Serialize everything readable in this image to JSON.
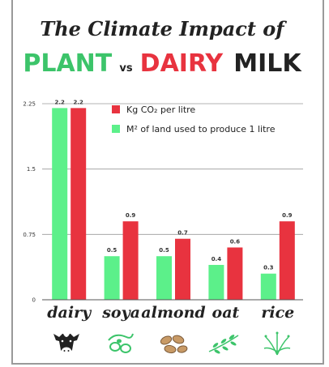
{
  "title_line1": "The Climate Impact of",
  "title_line2": {
    "plant": "PLANT",
    "vs": "vs",
    "dairy": "DAIRY",
    "milk": "MILK"
  },
  "colors": {
    "green": "#5cf08a",
    "red": "#e8333f",
    "title_green": "#3cc46a",
    "grid": "#9a9a9a"
  },
  "chart_data": {
    "type": "bar",
    "categories": [
      "dairy",
      "soya",
      "almond",
      "oat",
      "rice"
    ],
    "series": [
      {
        "name": "M² of land used to produce 1 litre",
        "color": "#5cf08a",
        "values": [
          2.2,
          0.5,
          0.5,
          0.4,
          0.3
        ]
      },
      {
        "name": "Kg CO₂ per litre",
        "color": "#e8333f",
        "values": [
          2.2,
          0.9,
          0.7,
          0.6,
          0.9
        ]
      }
    ],
    "value_labels": {
      "green": [
        "2.2",
        "0.5",
        "0.5",
        "0.4",
        "0.3"
      ],
      "red": [
        "2.2",
        "0.9",
        "0.7",
        "0.6",
        "0.9"
      ]
    },
    "yticks": [
      0,
      0.75,
      1.5,
      2.25
    ],
    "ytick_labels": [
      "0",
      "0.75",
      "1.5",
      "2.25"
    ],
    "ylim": [
      0,
      2.25
    ],
    "grid": true,
    "legend_position": "top-right",
    "title": "The Climate Impact of PLANT vs DAIRY MILK",
    "icons": [
      "cow-icon",
      "soybean-icon",
      "almond-icon",
      "oat-icon",
      "rice-icon"
    ]
  }
}
